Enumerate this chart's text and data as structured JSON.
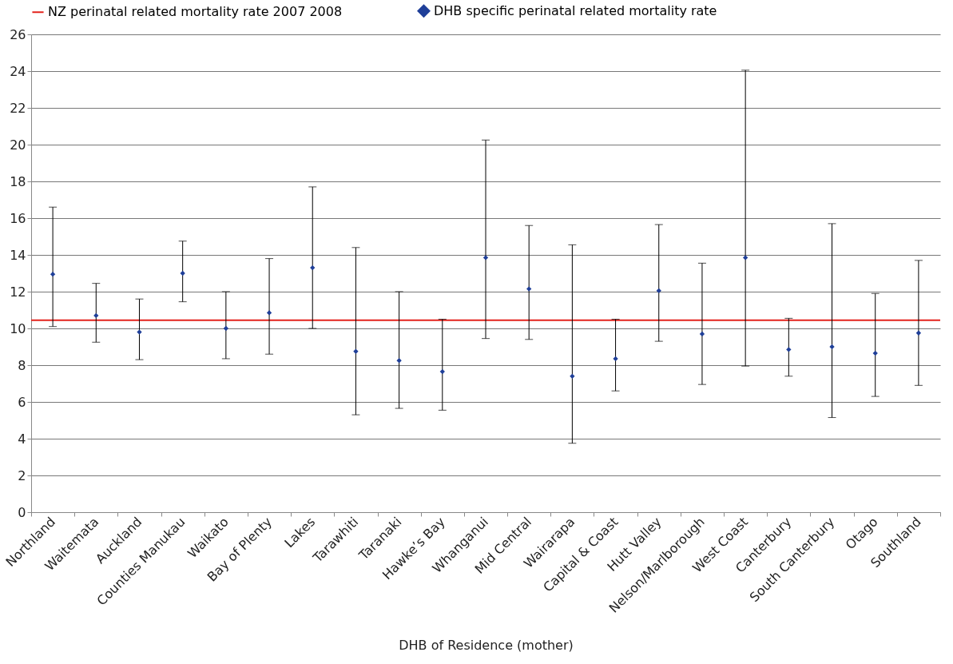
{
  "chart_data": {
    "type": "scatter",
    "xlabel": "DHB of Residence (mother)",
    "categories": [
      "Northland",
      "Waitemata",
      "Auckland",
      "Counties Manukau",
      "Waikato",
      "Bay of Plenty",
      "Lakes",
      "Tarawhiti",
      "Taranaki",
      "Hawke’s Bay",
      "Whanganui",
      "Mid Central",
      "Wairarapa",
      "Capital & Coast",
      "Hutt Valley",
      "Nelson/Marlborough",
      "West Coast",
      "Canterbury",
      "South Canterbury",
      "Otago",
      "Southland"
    ],
    "series": [
      {
        "name": "DHB specific perinatal related mortality rate",
        "color": "#1f3f99",
        "values": [
          12.95,
          10.7,
          9.8,
          13.0,
          10.0,
          10.85,
          13.3,
          8.75,
          8.25,
          7.65,
          13.85,
          12.15,
          7.4,
          8.35,
          12.05,
          9.7,
          13.85,
          8.85,
          9.0,
          8.65,
          9.75
        ],
        "errors": [
          [
            10.1,
            16.6
          ],
          [
            9.25,
            12.45
          ],
          [
            8.3,
            11.6
          ],
          [
            11.45,
            14.75
          ],
          [
            8.35,
            12.0
          ],
          [
            8.6,
            13.8
          ],
          [
            10.0,
            17.7
          ],
          [
            5.3,
            14.4
          ],
          [
            5.65,
            12.0
          ],
          [
            5.55,
            10.5
          ],
          [
            9.45,
            20.25
          ],
          [
            9.4,
            15.6
          ],
          [
            3.75,
            14.55
          ],
          [
            6.6,
            10.5
          ],
          [
            9.3,
            15.65
          ],
          [
            6.95,
            13.55
          ],
          [
            7.95,
            24.05
          ],
          [
            7.4,
            10.55
          ],
          [
            5.15,
            15.7
          ],
          [
            6.3,
            11.9
          ],
          [
            6.9,
            13.7
          ]
        ]
      }
    ],
    "ref_lines": [
      {
        "axis": "y",
        "value": 10.45,
        "label": "NZ perinatal related mortality rate 2007 2008",
        "color": "#e3231c"
      }
    ],
    "ylim": [
      0,
      26
    ],
    "yticks": [
      0,
      2,
      4,
      6,
      8,
      10,
      12,
      14,
      16,
      18,
      20,
      22,
      24,
      26
    ],
    "grid": "y",
    "legend": "top",
    "marker": "diamond"
  }
}
